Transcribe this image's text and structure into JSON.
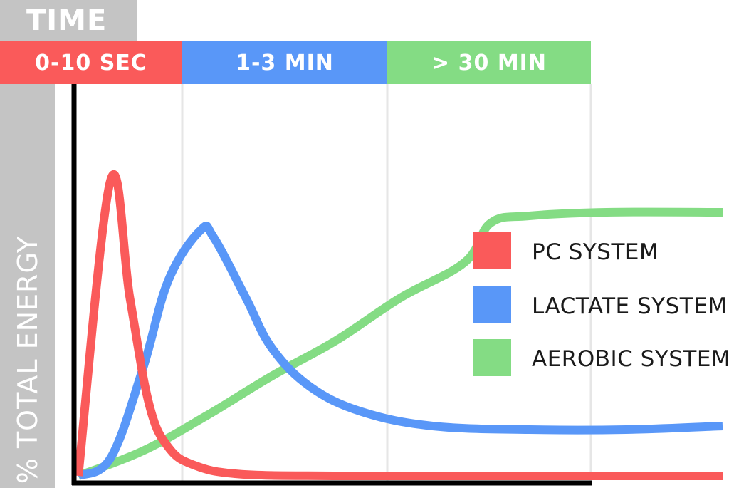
{
  "header": {
    "time_label": "TIME"
  },
  "y_axis_label": "% TOTAL ENERGY",
  "phases": [
    {
      "label": "0-10 SEC",
      "color": "#fa5a5a"
    },
    {
      "label": "1-3 MIN",
      "color": "#5997f8"
    },
    {
      "label": "> 30 MIN",
      "color": "#84dc84"
    }
  ],
  "legend": [
    {
      "label": "PC SYSTEM",
      "color": "#fa5a5a"
    },
    {
      "label": "LACTATE SYSTEM",
      "color": "#5997f8"
    },
    {
      "label": "AEROBIC SYSTEM",
      "color": "#84dc84"
    }
  ],
  "chart_data": {
    "type": "line",
    "title": "TIME",
    "ylabel": "% TOTAL ENERGY",
    "xlabel": "",
    "x_categories": [
      "0-10 SEC",
      "1-3 MIN",
      "> 30 MIN"
    ],
    "grid": true,
    "legend_position": "right",
    "xlim": [
      0,
      100
    ],
    "ylim": [
      0,
      100
    ],
    "series": [
      {
        "name": "PC SYSTEM",
        "color": "#fa5a5a",
        "points": [
          [
            0,
            0
          ],
          [
            5,
            83
          ],
          [
            8,
            50
          ],
          [
            11,
            20
          ],
          [
            14,
            8
          ],
          [
            18,
            3
          ],
          [
            25,
            0.5
          ],
          [
            40,
            0
          ],
          [
            60,
            0
          ],
          [
            80,
            0
          ],
          [
            100,
            0
          ]
        ]
      },
      {
        "name": "LACTATE SYSTEM",
        "color": "#5997f8",
        "points": [
          [
            0,
            0
          ],
          [
            5,
            5
          ],
          [
            10,
            30
          ],
          [
            14,
            55
          ],
          [
            19,
            69
          ],
          [
            21,
            67
          ],
          [
            26,
            50
          ],
          [
            30,
            36
          ],
          [
            36,
            25
          ],
          [
            44,
            18
          ],
          [
            55,
            14
          ],
          [
            70,
            13
          ],
          [
            85,
            13
          ],
          [
            100,
            14
          ]
        ]
      },
      {
        "name": "AEROBIC SYSTEM",
        "color": "#84dc84",
        "points": [
          [
            0,
            0
          ],
          [
            10,
            7
          ],
          [
            20,
            17
          ],
          [
            30,
            28
          ],
          [
            40,
            38
          ],
          [
            50,
            50
          ],
          [
            60,
            60
          ],
          [
            64,
            71
          ],
          [
            70,
            73
          ],
          [
            82,
            74
          ],
          [
            100,
            74
          ]
        ]
      }
    ]
  }
}
